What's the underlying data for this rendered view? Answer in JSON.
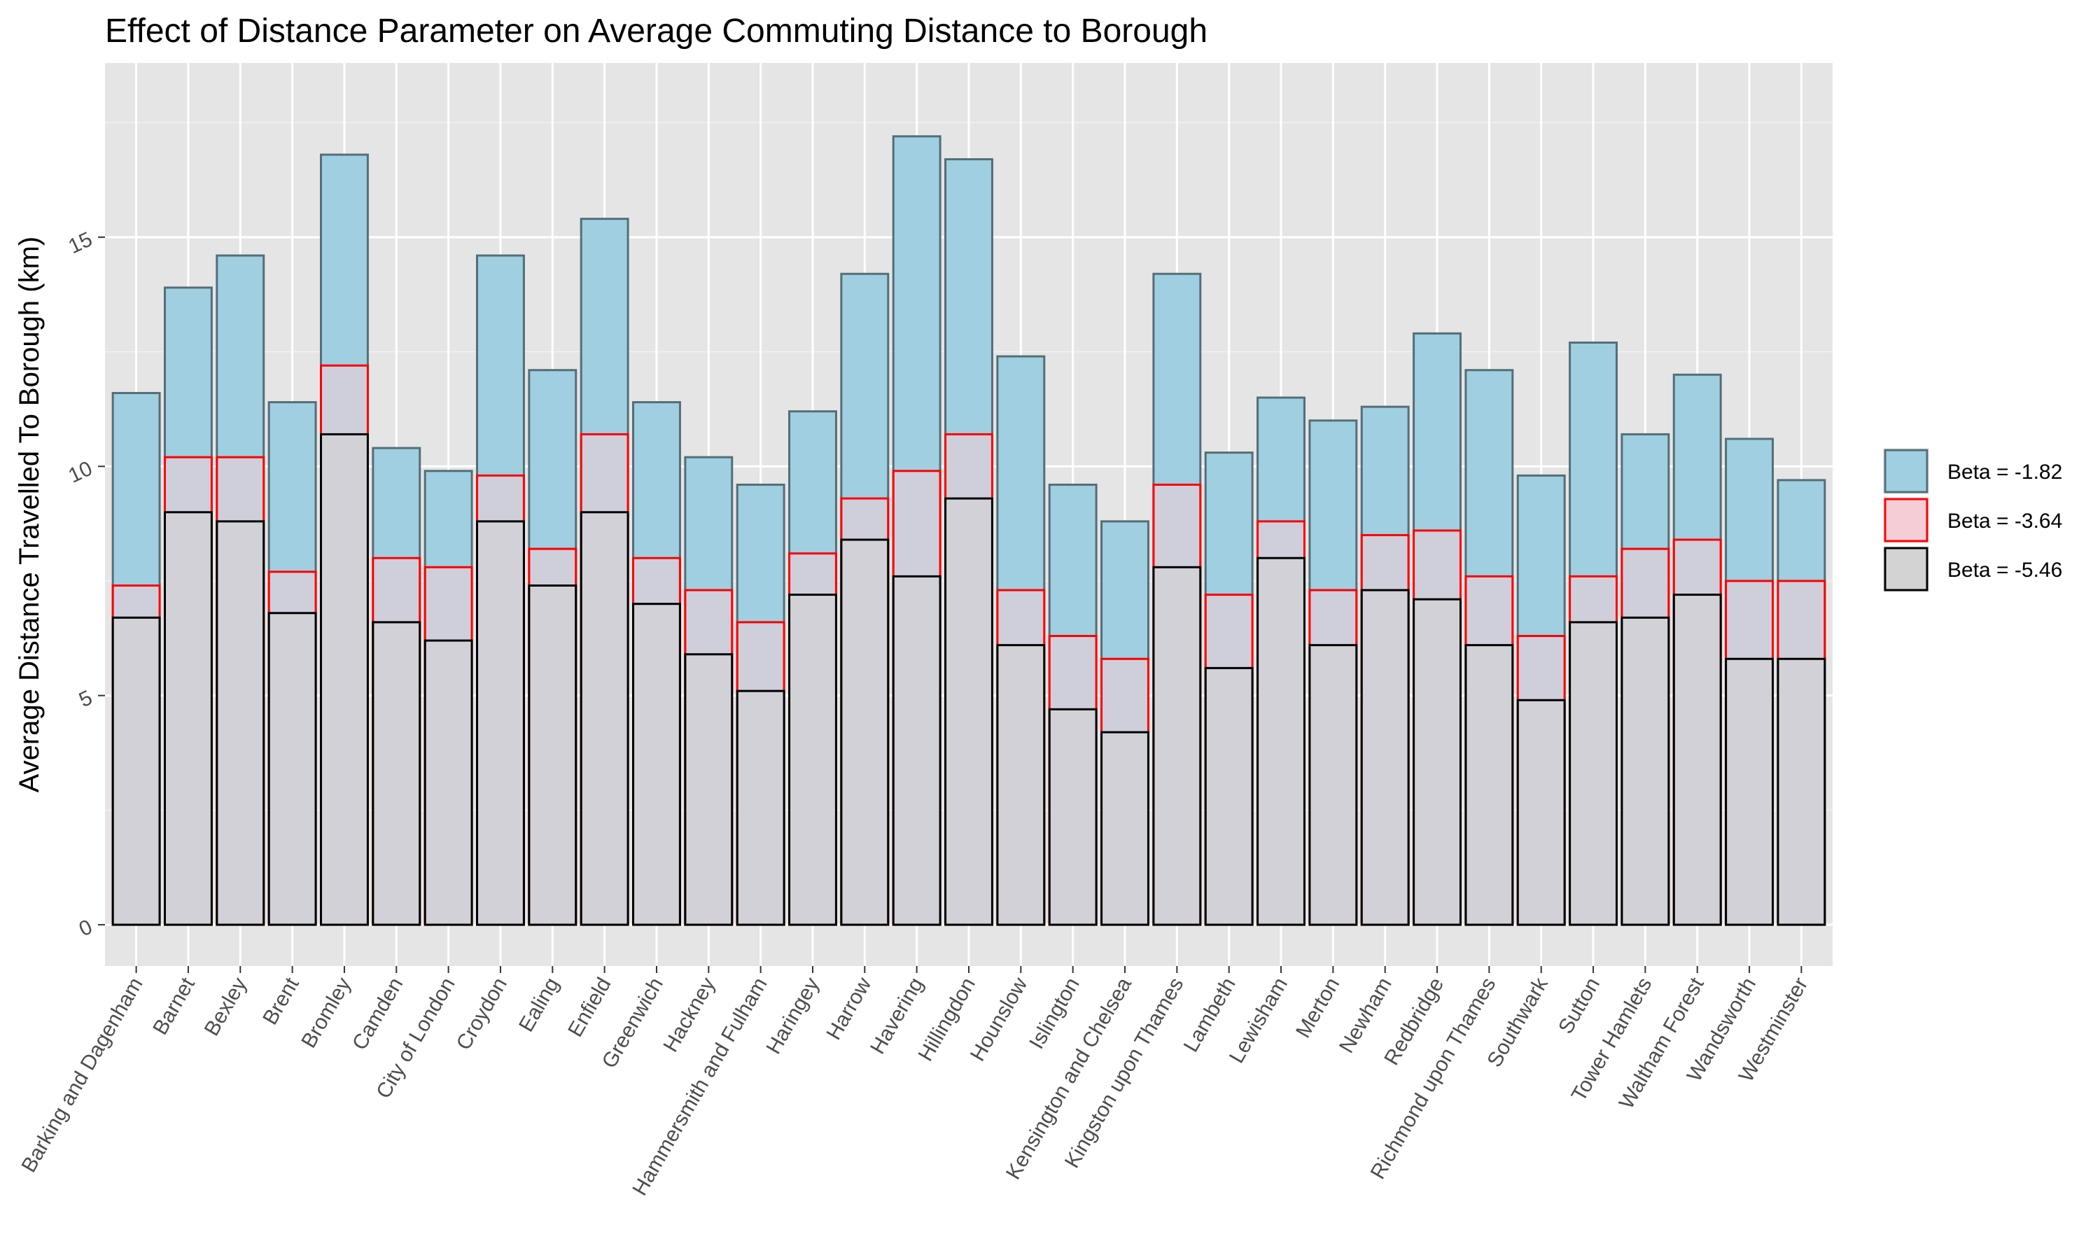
{
  "chart_data": {
    "type": "bar",
    "title": "Effect of Distance Parameter on Average Commuting Distance to Borough",
    "xlabel": "",
    "ylabel": "Average Distance Travelled To Borough (km)",
    "ylim": [
      -0.9,
      18.8
    ],
    "yticks": [
      0,
      5,
      10,
      15
    ],
    "ytick_labels": [
      "0",
      "5",
      "10",
      "15"
    ],
    "grid": true,
    "legend_position": "right",
    "categories": [
      "Barking and Dagenham",
      "Barnet",
      "Bexley",
      "Brent",
      "Bromley",
      "Camden",
      "City of London",
      "Croydon",
      "Ealing",
      "Enfield",
      "Greenwich",
      "Hackney",
      "Hammersmith and Fulham",
      "Haringey",
      "Harrow",
      "Havering",
      "Hillingdon",
      "Hounslow",
      "Islington",
      "Kensington and Chelsea",
      "Kingston upon Thames",
      "Lambeth",
      "Lewisham",
      "Merton",
      "Newham",
      "Redbridge",
      "Richmond upon Thames",
      "Southwark",
      "Sutton",
      "Tower Hamlets",
      "Waltham Forest",
      "Wandsworth",
      "Westminster"
    ],
    "series": [
      {
        "name": "Beta = -1.82",
        "fill": "#9fcfe0",
        "stroke": "#546e78",
        "values": [
          11.6,
          13.9,
          14.6,
          11.4,
          16.8,
          10.4,
          9.9,
          14.6,
          12.1,
          15.4,
          11.4,
          10.2,
          9.6,
          11.2,
          14.2,
          17.2,
          16.7,
          12.4,
          9.6,
          8.8,
          14.2,
          10.3,
          11.5,
          11.0,
          11.3,
          12.9,
          12.1,
          9.8,
          12.7,
          10.7,
          12.0,
          10.6,
          9.7
        ]
      },
      {
        "name": "Beta = -3.64",
        "fill": "#f5cdd7",
        "stroke": "#ff0000",
        "values": [
          7.4,
          10.2,
          10.2,
          7.7,
          12.2,
          8.0,
          7.8,
          9.8,
          8.2,
          10.7,
          8.0,
          7.3,
          6.6,
          8.1,
          9.3,
          9.9,
          10.7,
          7.3,
          6.3,
          5.8,
          9.6,
          7.2,
          8.8,
          7.3,
          8.5,
          8.6,
          7.6,
          6.3,
          7.6,
          8.2,
          8.4,
          7.5,
          7.5
        ]
      },
      {
        "name": "Beta = -5.46",
        "fill": "#d3d3d3",
        "stroke": "#000000",
        "values": [
          6.7,
          9.0,
          8.8,
          6.8,
          10.7,
          6.6,
          6.2,
          8.8,
          7.4,
          9.0,
          7.0,
          5.9,
          5.1,
          7.2,
          8.4,
          7.6,
          9.3,
          6.1,
          4.7,
          4.2,
          7.8,
          5.6,
          8.0,
          6.1,
          7.3,
          7.1,
          6.1,
          4.9,
          6.6,
          6.7,
          7.2,
          5.8,
          5.8
        ]
      }
    ]
  }
}
